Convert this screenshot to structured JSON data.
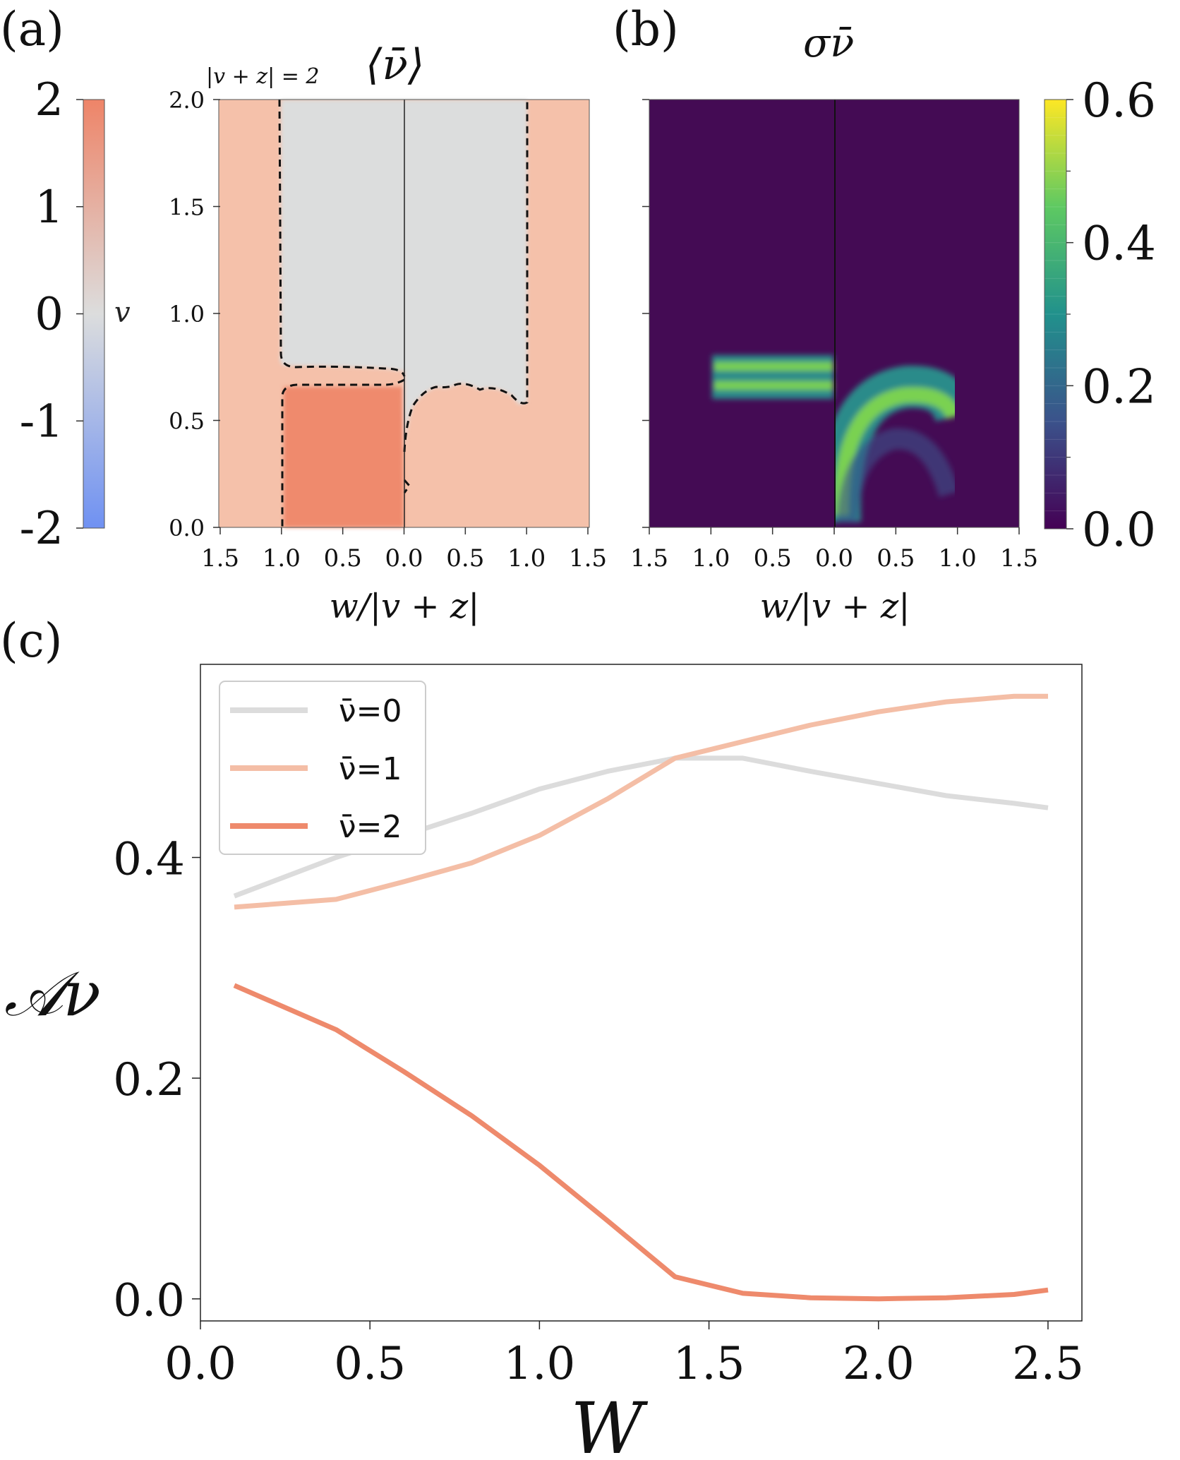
{
  "panels": {
    "a": {
      "label": "(a)",
      "title": "⟨ν̄⟩",
      "annotation": "|v + z| = 2",
      "xlabel": "w/|v + z|",
      "xticks": [
        "1.5",
        "1.0",
        "0.5",
        "0.0",
        "0.5",
        "1.0",
        "1.5"
      ],
      "yticks": [
        "0.0",
        "0.5",
        "1.0",
        "1.5",
        "2.0"
      ]
    },
    "b": {
      "label": "(b)",
      "title": "σν̄",
      "xlabel": "w/|v + z|",
      "xticks": [
        "1.5",
        "1.0",
        "0.5",
        "0.0",
        "0.5",
        "1.0",
        "1.5"
      ]
    },
    "c": {
      "label": "(c)",
      "xlabel": "W",
      "ylabel": "𝒜ν"
    }
  },
  "colorbar_v": {
    "label": "v",
    "ticks": [
      "2",
      "1",
      "0",
      "-1",
      "-2"
    ],
    "range": [
      -2,
      2
    ],
    "colors": {
      "neg": "#6f91f2",
      "zero": "#dcdddd",
      "pos": "#ee8468"
    }
  },
  "colorbar_sigma": {
    "ticks": [
      "0.6",
      "0.4",
      "0.2",
      "0.0"
    ],
    "range": [
      0.0,
      0.6
    ]
  },
  "colors": {
    "nu0": "#dcdcdc",
    "nu1": "#f4bea6",
    "nu2": "#ee8a6c",
    "sigma_bg": "#440b54",
    "sigma_peak": "#7ad151"
  },
  "chart_data": [
    {
      "type": "heatmap",
      "panel": "a",
      "title": "⟨ν̄⟩",
      "xlabel": "w/|v + z|",
      "ylabel": "",
      "xlim": [
        -1.5,
        1.5
      ],
      "ylim": [
        0.0,
        2.0
      ],
      "regions": [
        {
          "value": 1,
          "description": "outer background"
        },
        {
          "value": 0,
          "x": [
            -1.0,
            0.0
          ],
          "y": [
            0.75,
            2.0
          ]
        },
        {
          "value": 0,
          "x": [
            0.0,
            1.0
          ],
          "y": [
            0.6,
            2.0
          ]
        },
        {
          "value": 2,
          "x": [
            -1.0,
            0.0
          ],
          "y": [
            0.0,
            0.65
          ]
        },
        {
          "value": 1,
          "x": [
            0.0,
            1.0
          ],
          "y": [
            0.0,
            0.6
          ]
        }
      ]
    },
    {
      "type": "heatmap",
      "panel": "b",
      "title": "σν̄",
      "xlabel": "w/|v + z|",
      "xlim": [
        -1.5,
        1.5
      ],
      "ylim": [
        0.0,
        2.0
      ],
      "clim": [
        0.0,
        0.6
      ],
      "features": [
        {
          "shape": "double band",
          "x": [
            -1.0,
            0.0
          ],
          "y": [
            0.62,
            0.78
          ],
          "value": 0.45
        },
        {
          "shape": "arc",
          "x": [
            0.0,
            1.0
          ],
          "y": [
            0.0,
            0.7
          ],
          "value": 0.45
        }
      ]
    },
    {
      "type": "line",
      "panel": "c",
      "xlabel": "W",
      "ylabel": "𝒜ν",
      "xlim": [
        0.0,
        2.6
      ],
      "ylim": [
        -0.02,
        0.575
      ],
      "xticks": [
        "0.0",
        "0.5",
        "1.0",
        "1.5",
        "2.0",
        "2.5"
      ],
      "yticks": [
        "0.0",
        "0.2",
        "0.4"
      ],
      "legend_position": "upper-left",
      "series": [
        {
          "name": "ν̄=0",
          "color": "#dcdcdc",
          "x": [
            0.1,
            0.4,
            0.6,
            0.8,
            1.0,
            1.2,
            1.4,
            1.6,
            1.8,
            2.0,
            2.2,
            2.4,
            2.5
          ],
          "y": [
            0.365,
            0.4,
            0.42,
            0.44,
            0.462,
            0.478,
            0.49,
            0.49,
            0.478,
            0.467,
            0.456,
            0.449,
            0.445
          ]
        },
        {
          "name": "ν̄=1",
          "color": "#f4bea6",
          "x": [
            0.1,
            0.4,
            0.6,
            0.8,
            1.0,
            1.2,
            1.4,
            1.6,
            1.8,
            2.0,
            2.2,
            2.4,
            2.5
          ],
          "y": [
            0.355,
            0.362,
            0.378,
            0.395,
            0.42,
            0.453,
            0.49,
            0.505,
            0.52,
            0.532,
            0.541,
            0.546,
            0.546
          ]
        },
        {
          "name": "ν̄=2",
          "color": "#ee8a6c",
          "x": [
            0.1,
            0.4,
            0.6,
            0.8,
            1.0,
            1.2,
            1.4,
            1.6,
            1.8,
            2.0,
            2.2,
            2.4,
            2.5
          ],
          "y": [
            0.284,
            0.244,
            0.206,
            0.166,
            0.121,
            0.071,
            0.02,
            0.005,
            0.001,
            0.0,
            0.001,
            0.004,
            0.008
          ]
        }
      ]
    }
  ]
}
